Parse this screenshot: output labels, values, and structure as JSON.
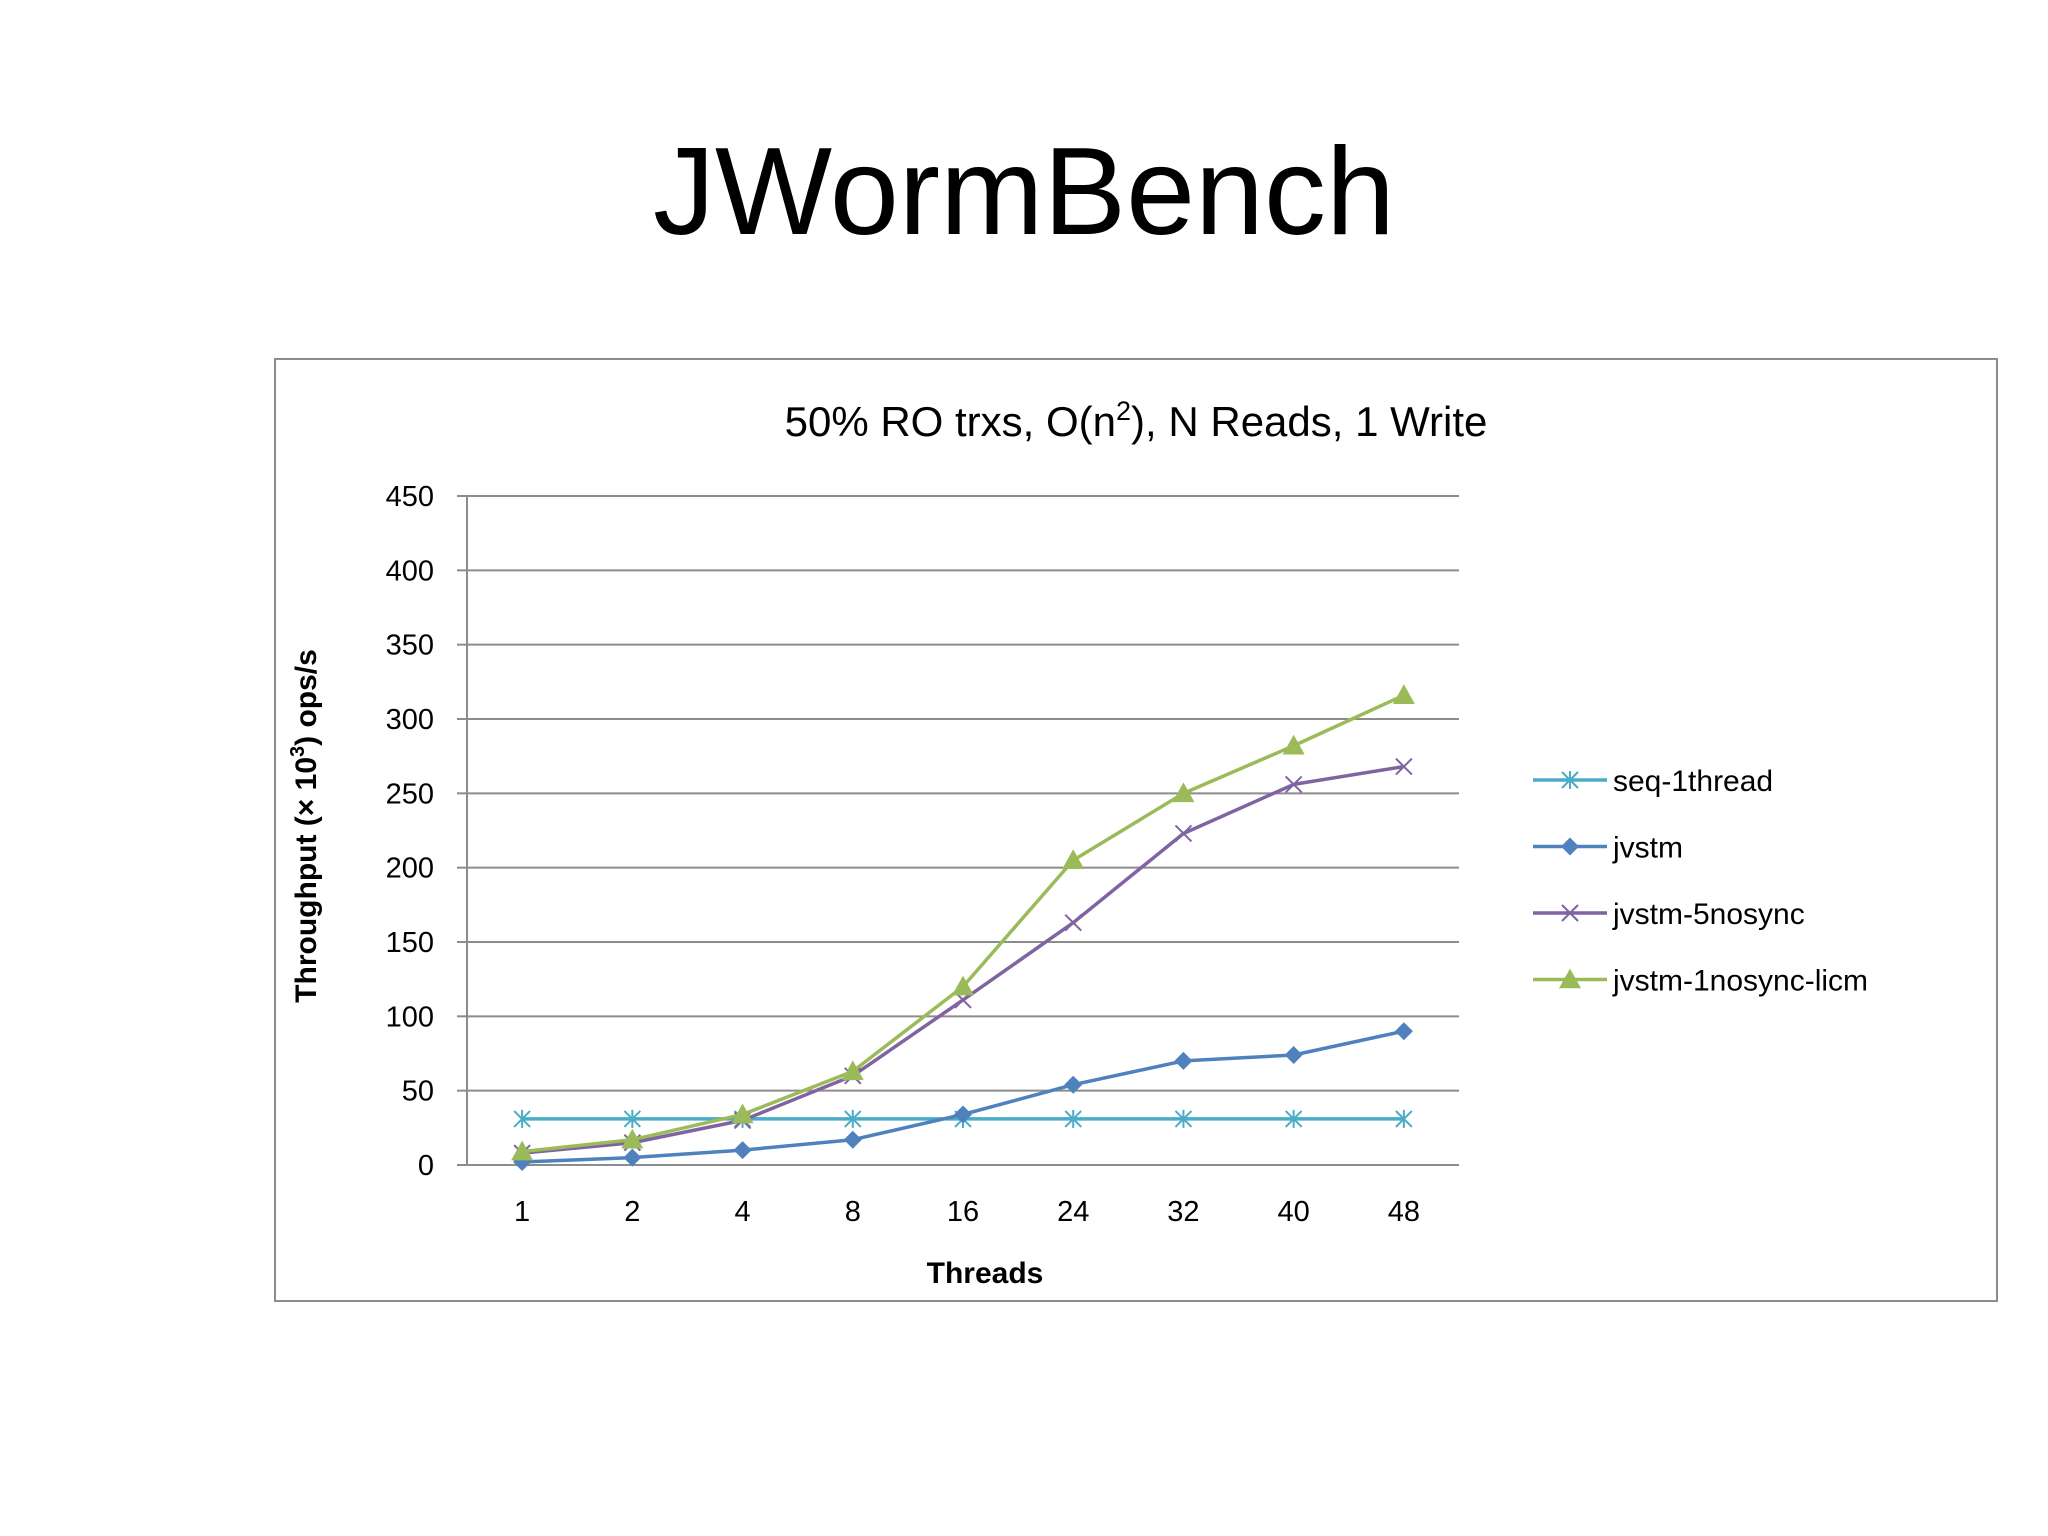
{
  "slide": {
    "title": "JWormBench"
  },
  "chart_data": {
    "type": "line",
    "title_main": "50% RO trxs, O(n",
    "title_sup": "2",
    "title_rest": "), N Reads, 1 Write",
    "xlabel": "Threads",
    "ylabel_pre": "Throughput (× 10",
    "ylabel_sup": "3",
    "ylabel_post": ") ops/s",
    "categories": [
      "1",
      "2",
      "4",
      "8",
      "16",
      "24",
      "32",
      "40",
      "48"
    ],
    "ylim": [
      0,
      450
    ],
    "yticks": [
      "0",
      "50",
      "100",
      "150",
      "200",
      "250",
      "300",
      "350",
      "400",
      "450"
    ],
    "grid": true,
    "legend_position": "right",
    "series": [
      {
        "name": "seq-1thread",
        "color": "#4bacc6",
        "marker": "asterisk",
        "values": [
          31,
          31,
          31,
          31,
          31,
          31,
          31,
          31,
          31
        ]
      },
      {
        "name": "jvstm",
        "color": "#4f81bd",
        "marker": "diamond",
        "values": [
          2,
          5,
          10,
          17,
          34,
          54,
          70,
          74,
          90
        ]
      },
      {
        "name": "jvstm-5nosync",
        "color": "#8064a2",
        "marker": "x",
        "values": [
          8,
          15,
          30,
          60,
          111,
          163,
          223,
          256,
          268
        ]
      },
      {
        "name": "jvstm-1nosync-licm",
        "color": "#9bbb59",
        "marker": "triangle",
        "values": [
          9,
          17,
          34,
          63,
          120,
          205,
          250,
          282,
          316
        ]
      }
    ]
  }
}
